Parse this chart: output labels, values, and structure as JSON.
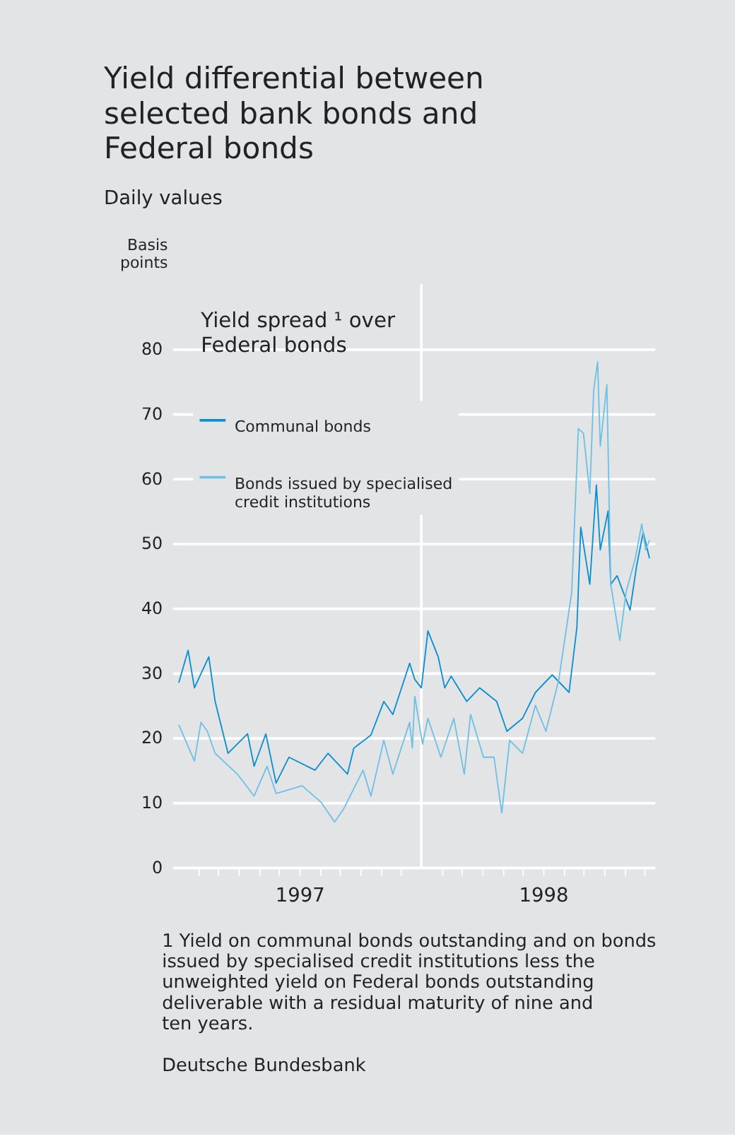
{
  "chart_data": {
    "type": "line",
    "title": "Yield differential between selected bank bonds and Federal bonds",
    "subtitle": "Daily values",
    "ylabel": "Basis points",
    "x": [
      1997.005,
      1997.043,
      1997.069,
      1997.128,
      1997.154,
      1997.207,
      1997.287,
      1997.314,
      1997.362,
      1997.404,
      1997.457,
      1997.564,
      1997.617,
      1997.697,
      1997.723,
      1997.793,
      1997.846,
      1997.883,
      1997.952,
      1997.973,
      1998.0,
      1998.027,
      1998.069,
      1998.096,
      1998.122,
      1998.186,
      1998.239,
      1998.309,
      1998.351,
      1998.415,
      1998.468,
      1998.537,
      1998.606,
      1998.638,
      1998.654,
      1998.691,
      1998.718,
      1998.734,
      1998.766,
      1998.777,
      1998.803,
      1998.856,
      1998.883,
      1998.91,
      1998.936
    ],
    "series": [
      {
        "name": "Communal bonds",
        "color": "#0a8fd0",
        "values": [
          28.5,
          33.5,
          27.7,
          32.5,
          25.6,
          17.6,
          20.6,
          15.6,
          20.6,
          13,
          17,
          15,
          17.6,
          14.4,
          18.4,
          20.4,
          25.6,
          23.6,
          31.5,
          29,
          27.7,
          36.5,
          32.5,
          27.7,
          29.5,
          25.6,
          27.7,
          25.6,
          21,
          23,
          27,
          29.7,
          27,
          37,
          52.5,
          43.7,
          59,
          49,
          55,
          43.7,
          45,
          39.7,
          46.5,
          51.7,
          47.7
        ]
      },
      {
        "name": "Bonds issued by specialised credit institutions",
        "color": "#6ec1e4",
        "x": [
          1997.005,
          1997.069,
          1997.096,
          1997.122,
          1997.154,
          1997.245,
          1997.314,
          1997.367,
          1997.404,
          1997.511,
          1997.59,
          1997.644,
          1997.681,
          1997.761,
          1997.793,
          1997.846,
          1997.883,
          1997.952,
          1997.963,
          1997.973,
          1998.005,
          1998.027,
          1998.08,
          1998.133,
          1998.176,
          1998.202,
          1998.255,
          1998.298,
          1998.33,
          1998.362,
          1998.415,
          1998.468,
          1998.511,
          1998.564,
          1998.617,
          1998.644,
          1998.665,
          1998.691,
          1998.707,
          1998.723,
          1998.734,
          1998.761,
          1998.777,
          1998.814,
          1998.84,
          1998.878,
          1998.904,
          1998.92,
          1998.936
        ],
        "values": [
          22,
          16.4,
          22.4,
          21,
          17.6,
          14.4,
          11,
          15.6,
          11.4,
          12.6,
          10,
          7,
          9,
          15,
          11,
          19.6,
          14.4,
          22.4,
          18.4,
          26.4,
          19,
          23,
          17,
          23,
          14.4,
          23.6,
          17,
          17,
          8.4,
          19.6,
          17.6,
          25,
          21,
          29,
          42.5,
          67.7,
          67,
          57.7,
          73.7,
          78,
          65,
          74.5,
          43.7,
          35,
          42.5,
          47.7,
          53,
          49,
          50.5
        ]
      }
    ],
    "xlim": [
      1997,
      1998.957
    ],
    "xticks": [
      {
        "value": 1997.0833,
        "label": null
      },
      {
        "value": 1997.1667,
        "label": null
      },
      {
        "value": 1997.25,
        "label": null
      },
      {
        "value": 1997.3333,
        "label": null
      },
      {
        "value": 1997.4167,
        "label": null
      },
      {
        "value": 1997.5,
        "label": "1997"
      },
      {
        "value": 1997.5833,
        "label": null
      },
      {
        "value": 1997.6667,
        "label": null
      },
      {
        "value": 1997.75,
        "label": null
      },
      {
        "value": 1997.8333,
        "label": null
      },
      {
        "value": 1997.9167,
        "label": null
      },
      {
        "value": 1998.0833,
        "label": null
      },
      {
        "value": 1998.1667,
        "label": null
      },
      {
        "value": 1998.25,
        "label": null
      },
      {
        "value": 1998.3333,
        "label": null
      },
      {
        "value": 1998.4167,
        "label": null
      },
      {
        "value": 1998.5,
        "label": "1998"
      },
      {
        "value": 1998.5833,
        "label": null
      },
      {
        "value": 1998.6667,
        "label": null
      },
      {
        "value": 1998.75,
        "label": null
      },
      {
        "value": 1998.8333,
        "label": null
      },
      {
        "value": 1998.9167,
        "label": null
      }
    ],
    "ylim": [
      0,
      90
    ],
    "yticks": [
      0,
      10,
      20,
      30,
      40,
      50,
      60,
      70,
      80
    ],
    "grid": "y",
    "legend": "top left",
    "ref_lines": [
      {
        "axis": "x",
        "value": 1998,
        "color": "#ffffff"
      }
    ],
    "annotations": [
      "Yield spread ¹ over\nFederal bonds",
      "1 Yield on communal bonds outstanding and on bonds issued by specialised credit institutions less the unweighted yield on Federal bonds outstanding deliverable with a residual maturity of nine and ten years.",
      "Deutsche Bundesbank"
    ]
  }
}
